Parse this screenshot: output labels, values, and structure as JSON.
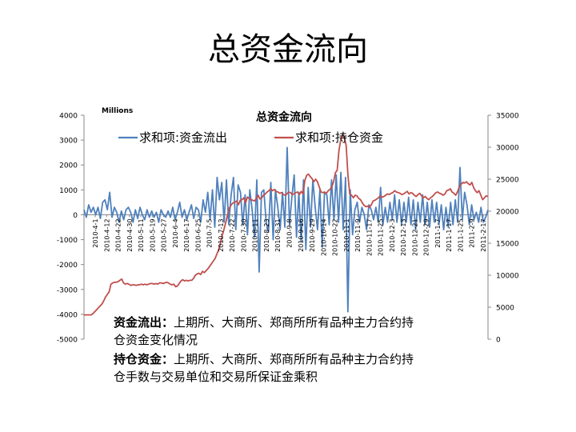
{
  "slide": {
    "title": "总资金流向"
  },
  "chart_data": {
    "type": "line",
    "title": "总资金流向",
    "unit_label": "Millions",
    "legend": {
      "placement": "top",
      "entries": [
        "求和项:资金流出",
        "求和项:持仓资金"
      ]
    },
    "left_axis": {
      "ylim": [
        -5000,
        4000
      ],
      "ticks": [
        4000,
        3000,
        2000,
        1000,
        0,
        -1000,
        -2000,
        -3000,
        -4000,
        -5000
      ]
    },
    "right_axis": {
      "ylim": [
        0,
        35000
      ],
      "ticks": [
        35000,
        30000,
        25000,
        20000,
        15000,
        10000,
        5000,
        0
      ]
    },
    "x_tick_labels": [
      "2010-4-1",
      "2010-4-12",
      "2010-4-22",
      "2010-4-30",
      "2010-5-11",
      "2010-5-19",
      "2010-5-27",
      "2010-6-4",
      "2010-6-17",
      "2010-6-25",
      "2010-7-5",
      "2010-7-13",
      "2010-7-22",
      "2010-7-30",
      "2010-8-11",
      "2010-8-23",
      "2010-8-31",
      "2010-9-8",
      "2010-9-16",
      "2010-9-29",
      "2010-10-14",
      "2010-10-22",
      "2010-11-1",
      "2010-11-9",
      "2010-11-17",
      "2010-11-25",
      "2010-12-3",
      "2010-12-13",
      "2010-12-21",
      "2010-12-29",
      "2011-1-7",
      "2011-1-17",
      "2011-1-25",
      "2011-2-9",
      "2011-2-17"
    ],
    "series": [
      {
        "name": "求和项:资金流出",
        "axis": "left",
        "color": "#4F81BD",
        "values": [
          200,
          -100,
          400,
          100,
          300,
          0,
          300,
          -150,
          500,
          600,
          200,
          900,
          -100,
          300,
          100,
          -300,
          150,
          -200,
          200,
          300,
          100,
          -300,
          200,
          -150,
          300,
          0,
          -200,
          200,
          -100,
          150,
          -100,
          100,
          -300,
          200,
          0,
          -100,
          150,
          -100,
          300,
          -200,
          100,
          500,
          -100,
          200,
          -200,
          100,
          400,
          -150,
          300,
          200,
          -300,
          600,
          100,
          900,
          -200,
          1000,
          -500,
          1500,
          600,
          1300,
          -300,
          1400,
          -400,
          800,
          1500,
          -600,
          1200,
          900,
          -400,
          800,
          -800,
          1000,
          200,
          -900,
          1400,
          -2300,
          900,
          1000,
          -300,
          -700,
          1300,
          -1000,
          1000,
          300,
          -600,
          900,
          -500,
          2700,
          -400,
          700,
          1600,
          -900,
          900,
          -1100,
          1400,
          -1400,
          1100,
          -500,
          1400,
          300,
          -600,
          1000,
          -1300,
          900,
          800,
          -400,
          1400,
          -200,
          1600,
          -300,
          1700,
          -600,
          1500,
          -3900,
          1000,
          -800,
          200,
          500,
          -300,
          300,
          0,
          -600,
          400,
          200,
          -200,
          300,
          -300,
          1100,
          -400,
          300,
          -300,
          500,
          -200,
          800,
          -300,
          600,
          -400,
          500,
          -300,
          700,
          -400,
          600,
          -600,
          500,
          -300,
          800,
          -400,
          500,
          -500,
          600,
          -300,
          500,
          -400,
          400,
          -600,
          300,
          -500,
          500,
          -400,
          600,
          -300,
          1900,
          -200,
          900,
          400,
          -400,
          400,
          -200,
          100,
          -300,
          300,
          -300,
          -100,
          200
        ]
      },
      {
        "name": "求和项:持仓资金",
        "axis": "right",
        "color": "#C0504D",
        "values": [
          3800,
          3800,
          3800,
          3800,
          3800,
          4000,
          4300,
          4600,
          4900,
          5200,
          5500,
          6000,
          6600,
          7000,
          7400,
          8600,
          8800,
          8900,
          8900,
          9000,
          9200,
          9400,
          8800,
          8600,
          8700,
          8600,
          8400,
          8500,
          8500,
          8400,
          8500,
          8500,
          8600,
          8500,
          8600,
          8500,
          8600,
          8700,
          8700,
          8600,
          8700,
          8600,
          8800,
          8800,
          8700,
          8800,
          8900,
          8800,
          8600,
          8500,
          8600,
          8200,
          8300,
          8700,
          9100,
          9300,
          9100,
          9200,
          9100,
          9200,
          9200,
          9500,
          10000,
          10200,
          10300,
          10100,
          10600,
          10400,
          10700,
          11000,
          11400,
          11800,
          12200,
          12600,
          13300,
          14000,
          15000,
          16200,
          17200,
          18300,
          19500,
          20500,
          21000,
          21300,
          21400,
          21600,
          21000,
          21700,
          21800,
          22100,
          21300,
          22200,
          22000,
          21800,
          21700,
          21600,
          22000,
          22500,
          21900,
          22100,
          22500,
          22700,
          23000,
          23200,
          23500,
          23200,
          23400,
          23100,
          23000,
          22800,
          22900,
          22600,
          22500,
          22700,
          23000,
          22900,
          22600,
          22700,
          22900,
          23000,
          22600,
          23100,
          22700,
          24800,
          25600,
          25800,
          25400,
          25100,
          24600,
          25000,
          24600,
          23800,
          23000,
          22900,
          23000,
          22800,
          23200,
          23400,
          23800,
          24600,
          26000,
          26400,
          29500,
          31200,
          32000,
          31500,
          30300,
          25600,
          22700,
          22500,
          22100,
          22500,
          22400,
          22000,
          21800,
          21300,
          20900,
          20700,
          20800,
          20600,
          21000,
          21600,
          21700,
          21900,
          22100,
          22400,
          22200,
          22300,
          22500,
          22700,
          22600,
          22800,
          22900,
          23200,
          23000,
          22900,
          22800,
          22600,
          22700,
          22900,
          23100,
          22700,
          22900,
          22800,
          22500,
          22300,
          22600,
          22800,
          22400,
          22100,
          22300,
          22000,
          21800,
          22100,
          22300,
          22600,
          22900,
          23000,
          22800,
          22700,
          22500,
          22700,
          23200,
          23300,
          23500,
          23000,
          22800,
          22500,
          23000,
          23800,
          24200,
          24500,
          24400,
          24600,
          24300,
          24100,
          24500,
          23700,
          23200,
          22900,
          23200,
          22500,
          21800,
          22100,
          22400,
          22300
        ]
      }
    ],
    "grid": false
  },
  "notes": [
    {
      "term": "资金流出：",
      "desc": "上期所、大商所、郑商所所有品种主力合约持仓资金变化情况"
    },
    {
      "term": "持仓资金：",
      "desc": "上期所、大商所、郑商所所有品种主力合约持仓手数与交易单位和交易所保证金乘积"
    }
  ]
}
